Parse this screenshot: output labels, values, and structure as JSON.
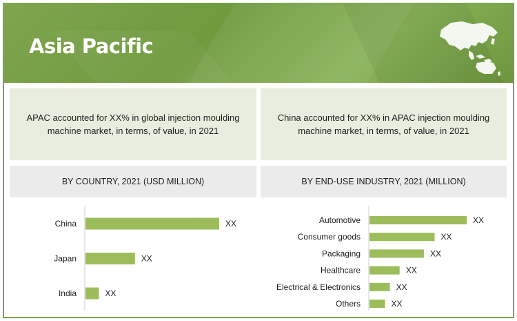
{
  "banner": {
    "title": "Asia Pacific",
    "icon": "asia-pacific-map-icon"
  },
  "panels": {
    "left_text": "APAC accounted for XX% in global  injection moulding machine market, in terms, of value, in 2021",
    "right_text": "China accounted for XX% in APAC  injection moulding machine market, in terms, of value, in 2021"
  },
  "colors": {
    "accent": "#7ba34a",
    "bar": "#9dbd5c",
    "panel": "#e8eedf",
    "header": "#ebebeb"
  },
  "chart_data": [
    {
      "type": "bar",
      "orientation": "horizontal",
      "title": "BY COUNTRY, 2021 (USD MILLION)",
      "categories": [
        "China",
        "Japan",
        "India"
      ],
      "values": [
        100,
        37,
        10
      ],
      "value_labels": [
        "XX",
        "XX",
        "XX"
      ],
      "xlim": [
        0,
        100
      ]
    },
    {
      "type": "bar",
      "orientation": "horizontal",
      "title": "BY END-USE INDUSTRY, 2021 (MILLION)",
      "categories": [
        "Automotive",
        "Consumer goods",
        "Packaging",
        "Healthcare",
        "Electrical & Electronics",
        "Others"
      ],
      "values": [
        100,
        67,
        56,
        31,
        21,
        16
      ],
      "value_labels": [
        "XX",
        "XX",
        "XX",
        "XX",
        "XX",
        "XX"
      ],
      "xlim": [
        0,
        100
      ]
    }
  ]
}
